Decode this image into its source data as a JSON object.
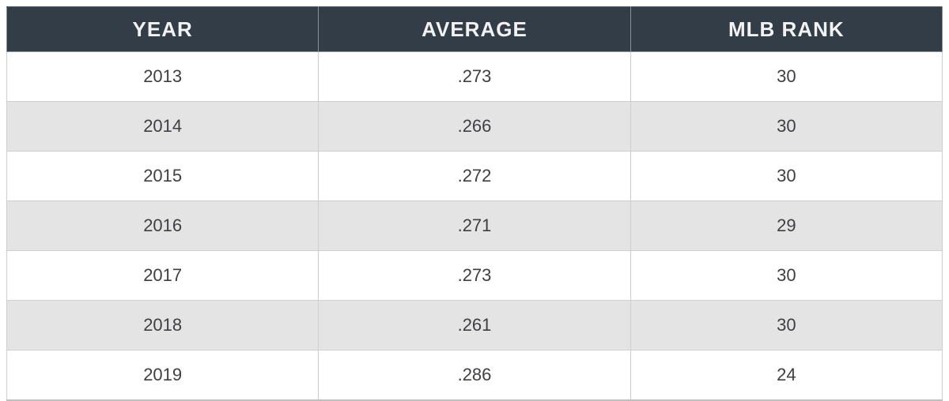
{
  "table": {
    "columns": [
      "YEAR",
      "AVERAGE",
      "MLB RANK"
    ],
    "rows": [
      {
        "year": "2013",
        "average": ".273",
        "mlb_rank": "30"
      },
      {
        "year": "2014",
        "average": ".266",
        "mlb_rank": "30"
      },
      {
        "year": "2015",
        "average": ".272",
        "mlb_rank": "30"
      },
      {
        "year": "2016",
        "average": ".271",
        "mlb_rank": "29"
      },
      {
        "year": "2017",
        "average": ".273",
        "mlb_rank": "30"
      },
      {
        "year": "2018",
        "average": ".261",
        "mlb_rank": "30"
      },
      {
        "year": "2019",
        "average": ".286",
        "mlb_rank": "24"
      }
    ]
  },
  "colors": {
    "header_bg": "#333d47",
    "header_text": "#f2f2f2",
    "row_alt_bg": "#e4e4e4",
    "body_text": "#3d3f42",
    "border": "#cfcfcf"
  }
}
